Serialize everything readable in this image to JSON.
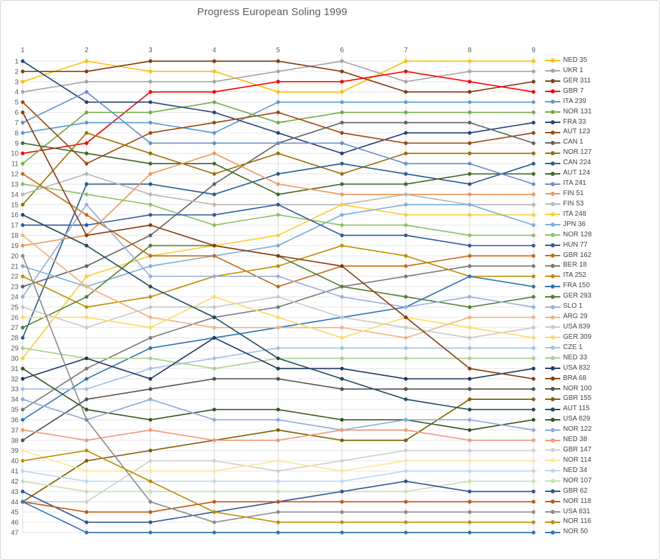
{
  "title": "Progress European Soling 1999",
  "chart_data": {
    "type": "line",
    "subtype": "bump-rank-progress",
    "title": "Progress European Soling 1999",
    "xlabel": "",
    "ylabel": "",
    "x_axis": {
      "position": "top",
      "ticks": [
        "1",
        "2",
        "3",
        "4",
        "5",
        "6",
        "7",
        "8",
        "9"
      ]
    },
    "y_axis": {
      "inverted": true,
      "min": 1,
      "max": 47,
      "ticks": [
        "1",
        "2",
        "3",
        "4",
        "5",
        "6",
        "7",
        "8",
        "9",
        "10",
        "11",
        "12",
        "13",
        "14",
        "15",
        "16",
        "17",
        "18",
        "19",
        "20",
        "21",
        "22",
        "23",
        "24",
        "25",
        "26",
        "27",
        "28",
        "29",
        "30",
        "31",
        "32",
        "33",
        "34",
        "35",
        "36",
        "37",
        "38",
        "39",
        "40",
        "41",
        "42",
        "43",
        "44",
        "45",
        "46",
        "47"
      ]
    },
    "grid": true,
    "legend_position": "right",
    "marker": "circle",
    "x": [
      1,
      2,
      3,
      4,
      5,
      6,
      7,
      8,
      9
    ],
    "series": [
      {
        "name": "NED 35",
        "color": "#FFC000",
        "values": [
          3,
          1,
          2,
          2,
          4,
          4,
          1,
          1,
          1
        ]
      },
      {
        "name": "UKR 1",
        "color": "#A5A5A5",
        "values": [
          4,
          3,
          3,
          3,
          2,
          1,
          3,
          2,
          2
        ]
      },
      {
        "name": "GER 311",
        "color": "#843C0C",
        "values": [
          2,
          2,
          1,
          1,
          1,
          2,
          4,
          4,
          3
        ]
      },
      {
        "name": "GBR 7",
        "color": "#FF0000",
        "values": [
          10,
          9,
          4,
          4,
          3,
          3,
          2,
          3,
          4
        ]
      },
      {
        "name": "ITA 239",
        "color": "#5B9BD5",
        "values": [
          8,
          7,
          7,
          8,
          5,
          5,
          5,
          5,
          5
        ]
      },
      {
        "name": "NOR 131",
        "color": "#70AD47",
        "values": [
          11,
          6,
          6,
          5,
          7,
          6,
          6,
          6,
          6
        ]
      },
      {
        "name": "FRA 33",
        "color": "#264478",
        "values": [
          1,
          5,
          5,
          6,
          8,
          10,
          8,
          8,
          7
        ]
      },
      {
        "name": "AUT 123",
        "color": "#9E480E",
        "values": [
          5,
          11,
          8,
          7,
          6,
          8,
          9,
          9,
          8
        ]
      },
      {
        "name": "CAN 1",
        "color": "#636363",
        "values": [
          23,
          21,
          18,
          13,
          9,
          7,
          7,
          7,
          9
        ]
      },
      {
        "name": "NOR 127",
        "color": "#997300",
        "values": [
          15,
          8,
          10,
          12,
          10,
          12,
          10,
          10,
          10
        ]
      },
      {
        "name": "CAN 224",
        "color": "#255E91",
        "values": [
          28,
          13,
          13,
          14,
          12,
          11,
          12,
          13,
          11
        ]
      },
      {
        "name": "AUT 124",
        "color": "#43682B",
        "values": [
          9,
          10,
          11,
          11,
          14,
          13,
          13,
          12,
          12
        ]
      },
      {
        "name": "ITA 241",
        "color": "#698ED0",
        "values": [
          7,
          4,
          9,
          9,
          9,
          9,
          11,
          11,
          13
        ]
      },
      {
        "name": "FIN 51",
        "color": "#F1975A",
        "values": [
          19,
          18,
          12,
          10,
          13,
          14,
          14,
          14,
          14
        ]
      },
      {
        "name": "FIN 53",
        "color": "#B7B7B7",
        "values": [
          14,
          12,
          14,
          15,
          15,
          15,
          14,
          15,
          15
        ]
      },
      {
        "name": "ITA 248",
        "color": "#FFCD33",
        "values": [
          30,
          22,
          20,
          19,
          18,
          15,
          16,
          16,
          16
        ]
      },
      {
        "name": "JPN 36",
        "color": "#7CAFDD",
        "values": [
          21,
          23,
          21,
          20,
          19,
          16,
          15,
          15,
          17
        ]
      },
      {
        "name": "NOR 128",
        "color": "#8CC168",
        "values": [
          13,
          14,
          15,
          17,
          16,
          17,
          17,
          18,
          18
        ]
      },
      {
        "name": "HUN 77",
        "color": "#335AA1",
        "values": [
          17,
          17,
          16,
          16,
          15,
          18,
          18,
          19,
          19
        ]
      },
      {
        "name": "GBR 162",
        "color": "#CB6A15",
        "values": [
          12,
          16,
          20,
          20,
          23,
          21,
          21,
          20,
          20
        ]
      },
      {
        "name": "BER 18",
        "color": "#7B7B7B",
        "values": [
          35,
          31,
          28,
          26,
          25,
          23,
          22,
          21,
          21
        ]
      },
      {
        "name": "ITA 252",
        "color": "#BF9000",
        "values": [
          22,
          25,
          24,
          22,
          21,
          19,
          20,
          22,
          22
        ]
      },
      {
        "name": "FRA 150",
        "color": "#2E75B6",
        "values": [
          36,
          32,
          29,
          28,
          27,
          26,
          25,
          22,
          23
        ]
      },
      {
        "name": "GER 293",
        "color": "#538135",
        "values": [
          27,
          24,
          19,
          19,
          20,
          23,
          24,
          25,
          24
        ]
      },
      {
        "name": "SLO 1",
        "color": "#9AAFDB",
        "values": [
          24,
          15,
          22,
          22,
          22,
          24,
          25,
          24,
          25
        ]
      },
      {
        "name": "ARG 29",
        "color": "#F4B183",
        "values": [
          18,
          23,
          26,
          27,
          27,
          27,
          28,
          26,
          26
        ]
      },
      {
        "name": "USA 839",
        "color": "#C9C9C9",
        "values": [
          25,
          27,
          25,
          25,
          24,
          26,
          27,
          28,
          27
        ]
      },
      {
        "name": "GER 309",
        "color": "#FFD966",
        "values": [
          26,
          26,
          27,
          24,
          26,
          28,
          26,
          27,
          28
        ]
      },
      {
        "name": "CZE 1",
        "color": "#9DC3E6",
        "values": [
          33,
          33,
          31,
          30,
          29,
          29,
          29,
          29,
          29
        ]
      },
      {
        "name": "NED 33",
        "color": "#A9D18E",
        "values": [
          29,
          30,
          30,
          31,
          30,
          30,
          30,
          30,
          30
        ]
      },
      {
        "name": "USA 832",
        "color": "#1F3864",
        "values": [
          32,
          30,
          32,
          28,
          31,
          31,
          32,
          32,
          31
        ]
      },
      {
        "name": "BRA 68",
        "color": "#8A3D0E",
        "values": [
          6,
          18,
          17,
          19,
          20,
          21,
          26,
          31,
          32
        ]
      },
      {
        "name": "NOR 100",
        "color": "#525252",
        "values": [
          38,
          34,
          33,
          32,
          32,
          33,
          33,
          33,
          33
        ]
      },
      {
        "name": "GBR 155",
        "color": "#7F6000",
        "values": [
          44,
          40,
          39,
          38,
          37,
          38,
          38,
          34,
          34
        ]
      },
      {
        "name": "AUT 115",
        "color": "#1F4E5F",
        "values": [
          16,
          19,
          23,
          26,
          30,
          32,
          34,
          35,
          35
        ]
      },
      {
        "name": "USA 829",
        "color": "#375623",
        "values": [
          31,
          35,
          36,
          35,
          35,
          36,
          36,
          37,
          36
        ]
      },
      {
        "name": "NOR 122",
        "color": "#8FAADC",
        "values": [
          34,
          36,
          34,
          36,
          36,
          37,
          36,
          36,
          37
        ]
      },
      {
        "name": "NED 38",
        "color": "#F2997A",
        "values": [
          37,
          38,
          37,
          38,
          38,
          37,
          37,
          38,
          38
        ]
      },
      {
        "name": "GBR 147",
        "color": "#CFCFCF",
        "values": [
          44,
          44,
          40,
          40,
          41,
          40,
          39,
          39,
          39
        ]
      },
      {
        "name": "NOR 114",
        "color": "#FFE699",
        "values": [
          39,
          41,
          41,
          41,
          40,
          41,
          40,
          40,
          40
        ]
      },
      {
        "name": "NED 34",
        "color": "#BDD7EE",
        "values": [
          41,
          42,
          42,
          42,
          42,
          42,
          41,
          41,
          41
        ]
      },
      {
        "name": "NOR 107",
        "color": "#C5E0B4",
        "values": [
          42,
          43,
          43,
          43,
          43,
          43,
          43,
          42,
          42
        ]
      },
      {
        "name": "GBR 62",
        "color": "#2F5597",
        "values": [
          43,
          46,
          46,
          45,
          44,
          43,
          42,
          43,
          43
        ]
      },
      {
        "name": "NOR 118",
        "color": "#C45911",
        "values": [
          44,
          45,
          45,
          44,
          44,
          44,
          44,
          44,
          44
        ]
      },
      {
        "name": "USA 831",
        "color": "#8C8C8C",
        "values": [
          20,
          36,
          44,
          46,
          45,
          45,
          45,
          45,
          45
        ]
      },
      {
        "name": "NOR 116",
        "color": "#BF8F00",
        "values": [
          40,
          39,
          42,
          45,
          46,
          46,
          46,
          46,
          46
        ]
      },
      {
        "name": "NOR 50",
        "color": "#2E75B6",
        "values": [
          44,
          47,
          47,
          47,
          47,
          47,
          47,
          47,
          47
        ]
      }
    ]
  },
  "style": {
    "title_color": "#595959",
    "axis_label_color": "#595959",
    "legend_label_color": "#444444",
    "h_gridline_color": "#E6E6E6",
    "v_gridline_color": "#D9D9D9",
    "background": "#FFFFFF"
  }
}
